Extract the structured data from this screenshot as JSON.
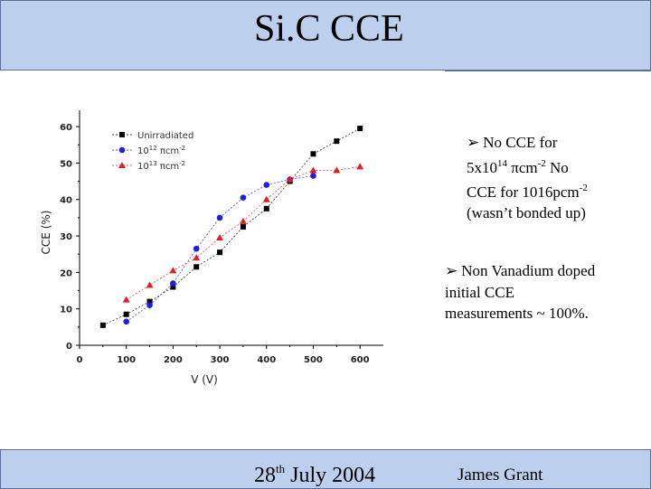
{
  "header": {
    "title": "Si.C CCE"
  },
  "footer": {
    "date_day": "28",
    "date_sup": "th",
    "date_rest": " July 2004",
    "author": "James Grant"
  },
  "notes": {
    "bullet1": {
      "l1": "No CCE for",
      "l2a": "5x10",
      "l2sup": "14",
      "l2b": " πcm",
      "l2sup2": "-2",
      "l2c": " No",
      "l3a": "CCE for 1016pcm",
      "l3sup": "-2",
      "l4": "(wasn’t bonded up)"
    },
    "bullet2": {
      "l1": "Non Vanadium doped",
      "l2": "initial CCE",
      "l3": "measurements ~ 100%."
    }
  },
  "colors": {
    "unirradiated": "#000000",
    "s12": "#1f1fe0",
    "s13": "#e02020",
    "title_bg": "#bcd0ee"
  },
  "chart_data": {
    "type": "line",
    "title": "",
    "xlabel": "V (V)",
    "ylabel": "CCE (%)",
    "xlim": [
      0,
      650
    ],
    "ylim": [
      0,
      62
    ],
    "xticks": [
      0,
      100,
      200,
      300,
      400,
      500,
      600
    ],
    "yticks": [
      0,
      10,
      20,
      30,
      40,
      50,
      60
    ],
    "legend_position": "top-left",
    "series": [
      {
        "name": "Unirradiated",
        "marker": "square",
        "x": [
          50,
          100,
          150,
          200,
          250,
          300,
          350,
          400,
          450,
          500,
          550,
          600
        ],
        "y": [
          5.5,
          8.5,
          12,
          16,
          21.5,
          25.5,
          32.5,
          37.5,
          45,
          52.5,
          56,
          59.5
        ]
      },
      {
        "name": "10",
        "name_sup": "12",
        "name_rest": " πcm",
        "name_sup2": "-2",
        "marker": "circle",
        "x": [
          100,
          150,
          200,
          250,
          300,
          350,
          400,
          450,
          500
        ],
        "y": [
          6.5,
          11,
          17,
          26.5,
          35,
          40.5,
          44,
          45.5,
          46.5
        ]
      },
      {
        "name": "10",
        "name_sup": "13",
        "name_rest": " πcm",
        "name_sup2": "-2",
        "marker": "triangle",
        "x": [
          100,
          150,
          200,
          250,
          300,
          350,
          400,
          450,
          500,
          550,
          600
        ],
        "y": [
          12.5,
          16.5,
          20.5,
          24,
          29.5,
          34,
          40,
          45.5,
          48,
          48,
          49
        ]
      }
    ]
  }
}
